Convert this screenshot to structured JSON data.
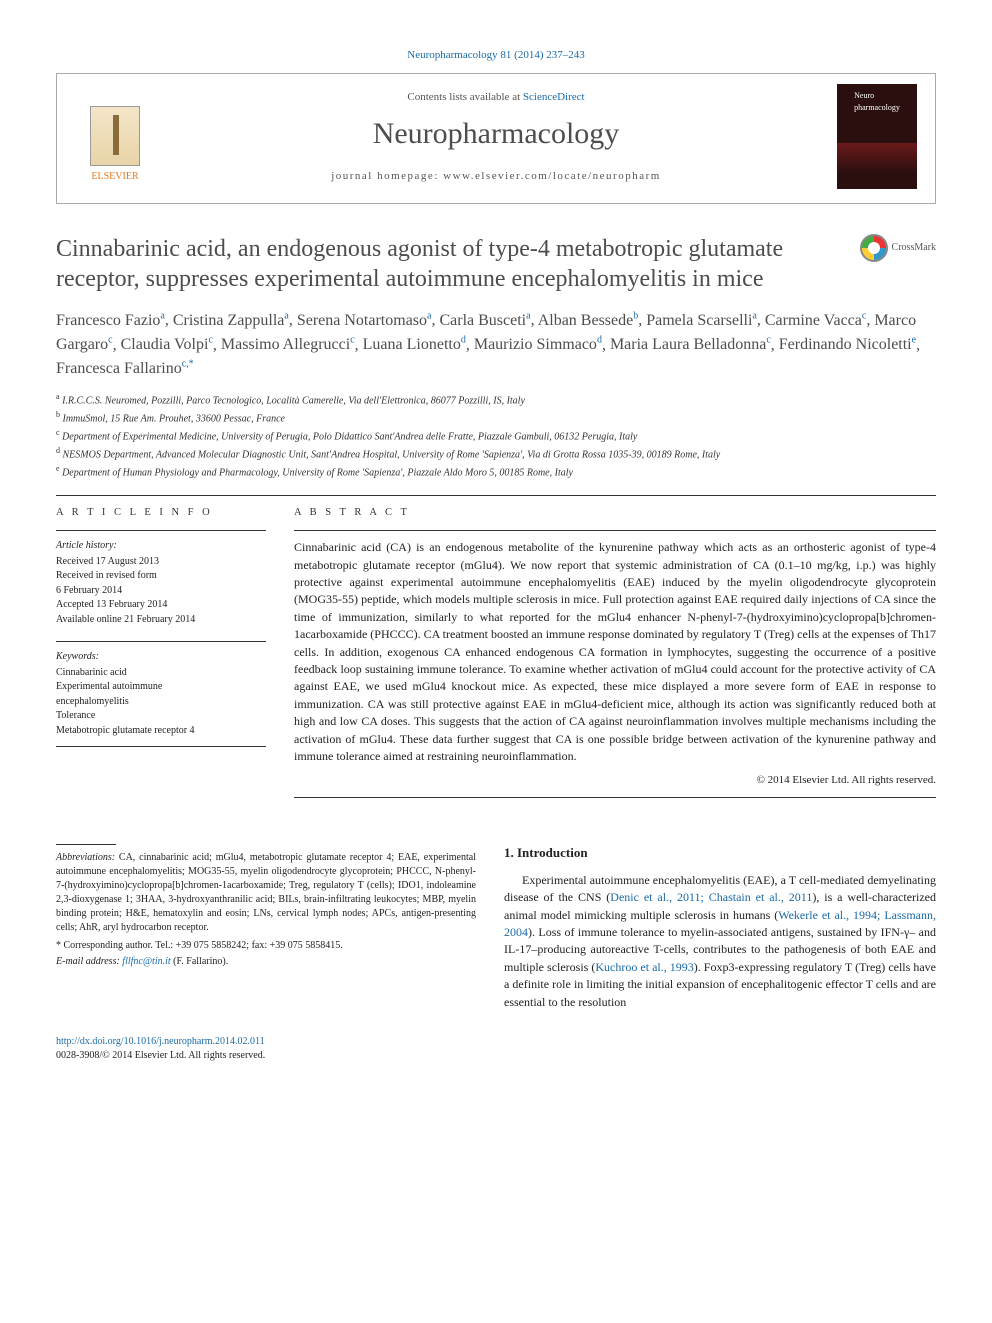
{
  "topLink": "Neuropharmacology 81 (2014) 237–243",
  "header": {
    "contentsPrefix": "Contents lists available at ",
    "contentsLink": "ScienceDirect",
    "journal": "Neuropharmacology",
    "homepage": "journal homepage: www.elsevier.com/locate/neuropharm",
    "publisher": "ELSEVIER",
    "coverLabel": "Neuro\npharmacology"
  },
  "crossmark": "CrossMark",
  "title": "Cinnabarinic acid, an endogenous agonist of type-4 metabotropic glutamate receptor, suppresses experimental autoimmune encephalomyelitis in mice",
  "authors": [
    {
      "name": "Francesco Fazio",
      "aff": "a"
    },
    {
      "name": "Cristina Zappulla",
      "aff": "a"
    },
    {
      "name": "Serena Notartomaso",
      "aff": "a"
    },
    {
      "name": "Carla Busceti",
      "aff": "a"
    },
    {
      "name": "Alban Bessede",
      "aff": "b"
    },
    {
      "name": "Pamela Scarselli",
      "aff": "a"
    },
    {
      "name": "Carmine Vacca",
      "aff": "c"
    },
    {
      "name": "Marco Gargaro",
      "aff": "c"
    },
    {
      "name": "Claudia Volpi",
      "aff": "c"
    },
    {
      "name": "Massimo Allegrucci",
      "aff": "c"
    },
    {
      "name": "Luana Lionetto",
      "aff": "d"
    },
    {
      "name": "Maurizio Simmaco",
      "aff": "d"
    },
    {
      "name": "Maria Laura Belladonna",
      "aff": "c"
    },
    {
      "name": "Ferdinando Nicoletti",
      "aff": "e"
    },
    {
      "name": "Francesca Fallarino",
      "aff": "c,*"
    }
  ],
  "affiliations": [
    {
      "key": "a",
      "text": "I.R.C.C.S. Neuromed, Pozzilli, Parco Tecnologico, Località Camerelle, Via dell'Elettronica, 86077 Pozzilli, IS, Italy"
    },
    {
      "key": "b",
      "text": "ImmuSmol, 15 Rue Am. Prouhet, 33600 Pessac, France"
    },
    {
      "key": "c",
      "text": "Department of Experimental Medicine, University of Perugia, Polo Didattico Sant'Andrea delle Fratte, Piazzale Gambuli, 06132 Perugia, Italy"
    },
    {
      "key": "d",
      "text": "NESMOS Department, Advanced Molecular Diagnostic Unit, Sant'Andrea Hospital, University of Rome 'Sapienza', Via di Grotta Rossa 1035-39, 00189 Rome, Italy"
    },
    {
      "key": "e",
      "text": "Department of Human Physiology and Pharmacology, University of Rome 'Sapienza', Piazzale Aldo Moro 5, 00185 Rome, Italy"
    }
  ],
  "articleInfoHead": "A R T I C L E   I N F O",
  "history": {
    "label": "Article history:",
    "received": "Received 17 August 2013",
    "revised": "Received in revised form",
    "revisedDate": "6 February 2014",
    "accepted": "Accepted 13 February 2014",
    "online": "Available online 21 February 2014"
  },
  "keywords": {
    "label": "Keywords:",
    "items": [
      "Cinnabarinic acid",
      "Experimental autoimmune",
      "encephalomyelitis",
      "Tolerance",
      "Metabotropic glutamate receptor 4"
    ]
  },
  "abstractHead": "A B S T R A C T",
  "abstractText": "Cinnabarinic acid (CA) is an endogenous metabolite of the kynurenine pathway which acts as an orthosteric agonist of type-4 metabotropic glutamate receptor (mGlu4). We now report that systemic administration of CA (0.1–10 mg/kg, i.p.) was highly protective against experimental autoimmune encephalomyelitis (EAE) induced by the myelin oligodendrocyte glycoprotein (MOG35-55) peptide, which models multiple sclerosis in mice. Full protection against EAE required daily injections of CA since the time of immunization, similarly to what reported for the mGlu4 enhancer N-phenyl-7-(hydroxyimino)cyclopropa[b]chromen-1acarboxamide (PHCCC). CA treatment boosted an immune response dominated by regulatory T (Treg) cells at the expenses of Th17 cells. In addition, exogenous CA enhanced endogenous CA formation in lymphocytes, suggesting the occurrence of a positive feedback loop sustaining immune tolerance. To examine whether activation of mGlu4 could account for the protective activity of CA against EAE, we used mGlu4 knockout mice. As expected, these mice displayed a more severe form of EAE in response to immunization. CA was still protective against EAE in mGlu4-deficient mice, although its action was significantly reduced both at high and low CA doses. This suggests that the action of CA against neuroinflammation involves multiple mechanisms including the activation of mGlu4. These data further suggest that CA is one possible bridge between activation of the kynurenine pathway and immune tolerance aimed at restraining neuroinflammation.",
  "copyright": "© 2014 Elsevier Ltd. All rights reserved.",
  "abbrev": {
    "label": "Abbreviations:",
    "text": " CA, cinnabarinic acid; mGlu4, metabotropic glutamate receptor 4; EAE, experimental autoimmune encephalomyelitis; MOG35-55, myelin oligodendrocyte glycoprotein; PHCCC, N-phenyl-7-(hydroxyimino)cyclopropa[b]chromen-1acarboxamide; Treg, regulatory T (cells); IDO1, indoleamine 2,3-dioxygenase 1; 3HAA, 3-hydroxyanthranilic acid; BILs, brain-infiltrating leukocytes; MBP, myelin binding protein; H&E, hematoxylin and eosin; LNs, cervical lymph nodes; APCs, antigen-presenting cells; AhR, aryl hydrocarbon receptor."
  },
  "corresponding": "* Corresponding author. Tel.: +39 075 5858242; fax: +39 075 5858415.",
  "emailLabel": "E-mail address: ",
  "email": "fllfnc@tin.it",
  "emailSuffix": " (F. Fallarino).",
  "intro": {
    "head": "1.  Introduction",
    "p1a": "Experimental autoimmune encephalomyelitis (EAE), a T cell-mediated demyelinating disease of the CNS (",
    "c1": "Denic et al., 2011; Chastain et al., 2011",
    "p1b": "), is a well-characterized animal model mimicking multiple sclerosis in humans (",
    "c2": "Wekerle et al., 1994; Lassmann, 2004",
    "p1c": "). Loss of immune tolerance to myelin-associated antigens, sustained by IFN-γ– and IL-17–producing autoreactive T-cells, contributes to the pathogenesis of both EAE and multiple sclerosis (",
    "c3": "Kuchroo et al., 1993",
    "p1d": "). Foxp3-expressing regulatory T (Treg) cells have a definite role in limiting the initial expansion of encephalitogenic effector T cells and are essential to the resolution"
  },
  "doi": {
    "url": "http://dx.doi.org/10.1016/j.neuropharm.2014.02.011",
    "issn": "0028-3908/© 2014 Elsevier Ltd. All rights reserved."
  },
  "colors": {
    "link": "#1a6aa8",
    "headingGrey": "#4d4d4d"
  }
}
